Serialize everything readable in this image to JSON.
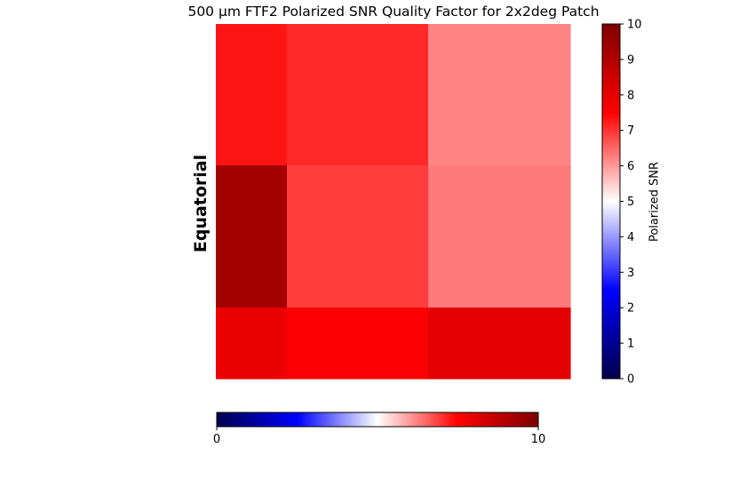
{
  "chart_data": {
    "type": "heatmap",
    "title": "500 μm FTF2 Polarized SNR Quality Factor for 2x2deg Patch",
    "ylabel": "Equatorial",
    "colorbar_label": "Polarized SNR",
    "colorbar_range": [
      0,
      10
    ],
    "colorbar_ticks": [
      0,
      1,
      2,
      3,
      4,
      5,
      6,
      7,
      8,
      9,
      10
    ],
    "horizontal_colorbar_ticks": [
      0,
      10
    ],
    "colormap": "seismic",
    "grid": false,
    "rows": [
      [
        7.3,
        7.1,
        6.2
      ],
      [
        9.3,
        6.9,
        6.3
      ],
      [
        7.9,
        7.6,
        8.0
      ]
    ]
  }
}
